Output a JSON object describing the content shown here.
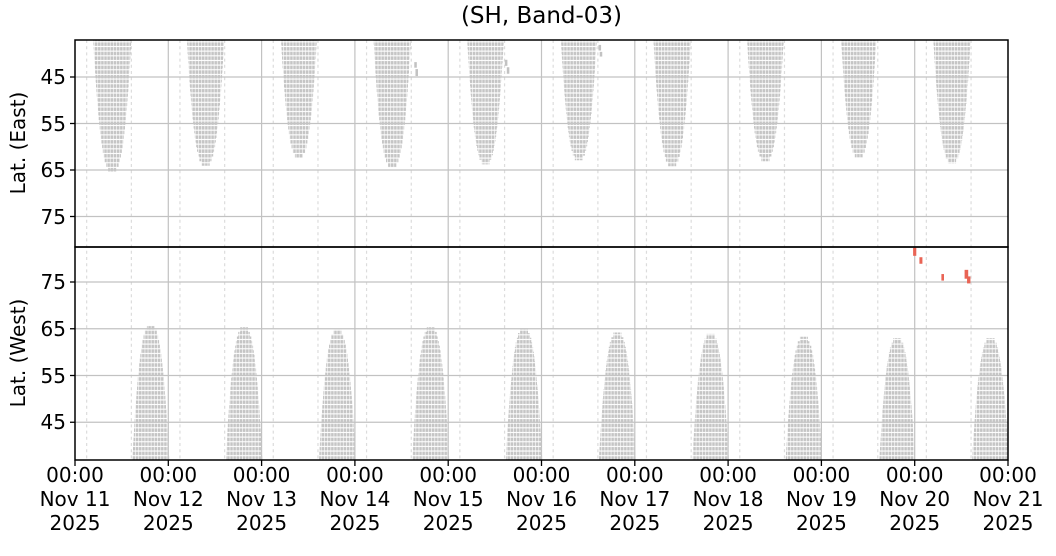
{
  "chart_data": {
    "type": "scatter",
    "title": "(SH, Band-03)",
    "grid": true,
    "x_axis": {
      "start": "Nov 11 2025 00:00",
      "end": "Nov 21 2025 00:00",
      "days": 10,
      "minor_gridline_hours": [
        3,
        14.5
      ],
      "tick_labels": [
        {
          "time": "00:00",
          "date": "Nov 11",
          "year": "2025"
        },
        {
          "time": "00:00",
          "date": "Nov 12",
          "year": "2025"
        },
        {
          "time": "00:00",
          "date": "Nov 13",
          "year": "2025"
        },
        {
          "time": "00:00",
          "date": "Nov 14",
          "year": "2025"
        },
        {
          "time": "00:00",
          "date": "Nov 15",
          "year": "2025"
        },
        {
          "time": "00:00",
          "date": "Nov 16",
          "year": "2025"
        },
        {
          "time": "00:00",
          "date": "Nov 17",
          "year": "2025"
        },
        {
          "time": "00:00",
          "date": "Nov 18",
          "year": "2025"
        },
        {
          "time": "00:00",
          "date": "Nov 19",
          "year": "2025"
        },
        {
          "time": "00:00",
          "date": "Nov 20",
          "year": "2025"
        },
        {
          "time": "00:00",
          "date": "Nov 21",
          "year": "2025"
        }
      ]
    },
    "colors": {
      "coverage": "#c5c5c5",
      "speck": "#c2c2c2",
      "anomaly": "#e96455",
      "grid_major": "#c2c2c2",
      "grid_minor": "#dcdcdc",
      "axis": "#000000"
    },
    "panels": [
      {
        "name": "east",
        "ylabel": "Lat. (East)",
        "y_inverted": true,
        "yticks": [
          45,
          55,
          65,
          75
        ],
        "ylim": [
          37.0,
          81.6
        ],
        "coverage_blobs": [
          {
            "center_hour": 9.6,
            "tip_lat": 65.4,
            "width_hours": 9.8
          },
          {
            "center_hour": 33.6,
            "tip_lat": 64.1,
            "width_hours": 9.6
          },
          {
            "center_hour": 57.6,
            "tip_lat": 62.4,
            "width_hours": 9.2
          },
          {
            "center_hour": 81.6,
            "tip_lat": 64.5,
            "width_hours": 9.6
          },
          {
            "center_hour": 105.6,
            "tip_lat": 63.8,
            "width_hours": 9.4
          },
          {
            "center_hour": 129.6,
            "tip_lat": 62.9,
            "width_hours": 9.2
          },
          {
            "center_hour": 153.6,
            "tip_lat": 64.2,
            "width_hours": 9.6
          },
          {
            "center_hour": 177.6,
            "tip_lat": 63.1,
            "width_hours": 9.4
          },
          {
            "center_hour": 201.6,
            "tip_lat": 62.3,
            "width_hours": 9.0
          },
          {
            "center_hour": 225.6,
            "tip_lat": 63.6,
            "width_hours": 9.6
          }
        ],
        "specks": [
          {
            "hour": 87.6,
            "lat_from": 41.8,
            "lat_to": 43.0,
            "duration_hours": 0.65
          },
          {
            "hour": 87.9,
            "lat_from": 43.3,
            "lat_to": 44.8,
            "duration_hours": 0.65
          },
          {
            "hour": 110.9,
            "lat_from": 41.3,
            "lat_to": 42.6,
            "duration_hours": 0.65
          },
          {
            "hour": 111.4,
            "lat_from": 42.9,
            "lat_to": 44.3,
            "duration_hours": 0.65
          },
          {
            "hour": 135.0,
            "lat_from": 38.1,
            "lat_to": 39.3,
            "duration_hours": 0.65
          },
          {
            "hour": 135.3,
            "lat_from": 39.6,
            "lat_to": 40.6,
            "duration_hours": 0.65
          }
        ],
        "anomaly_marks": []
      },
      {
        "name": "west",
        "ylabel": "Lat. (West)",
        "y_inverted": false,
        "yticks": [
          75,
          65,
          55,
          45
        ],
        "ylim": [
          36.9,
          82.5
        ],
        "coverage_blobs": [
          {
            "center_hour": 19.5,
            "tip_lat": 65.8,
            "width_hours": 9.5
          },
          {
            "center_hour": 43.5,
            "tip_lat": 65.3,
            "width_hours": 9.4
          },
          {
            "center_hour": 67.5,
            "tip_lat": 64.8,
            "width_hours": 9.5
          },
          {
            "center_hour": 91.5,
            "tip_lat": 65.3,
            "width_hours": 9.5
          },
          {
            "center_hour": 115.5,
            "tip_lat": 65.1,
            "width_hours": 9.4
          },
          {
            "center_hour": 139.5,
            "tip_lat": 64.2,
            "width_hours": 9.5
          },
          {
            "center_hour": 163.5,
            "tip_lat": 63.9,
            "width_hours": 9.4
          },
          {
            "center_hour": 187.5,
            "tip_lat": 63.3,
            "width_hours": 9.4
          },
          {
            "center_hour": 211.5,
            "tip_lat": 63.0,
            "width_hours": 9.2
          },
          {
            "center_hour": 235.5,
            "tip_lat": 63.0,
            "width_hours": 9.5
          }
        ],
        "specks": [],
        "anomaly_marks": [
          {
            "hour": 216.0,
            "lat_from": 80.6,
            "lat_to": 82.3,
            "duration_hours": 0.82
          },
          {
            "hour": 217.6,
            "lat_from": 78.9,
            "lat_to": 80.3,
            "duration_hours": 0.77
          },
          {
            "hour": 223.2,
            "lat_from": 75.3,
            "lat_to": 76.7,
            "duration_hours": 0.67
          },
          {
            "hour": 229.3,
            "lat_from": 75.7,
            "lat_to": 77.6,
            "duration_hours": 0.93
          },
          {
            "hour": 229.9,
            "lat_from": 74.7,
            "lat_to": 76.2,
            "duration_hours": 0.87
          }
        ]
      }
    ]
  }
}
